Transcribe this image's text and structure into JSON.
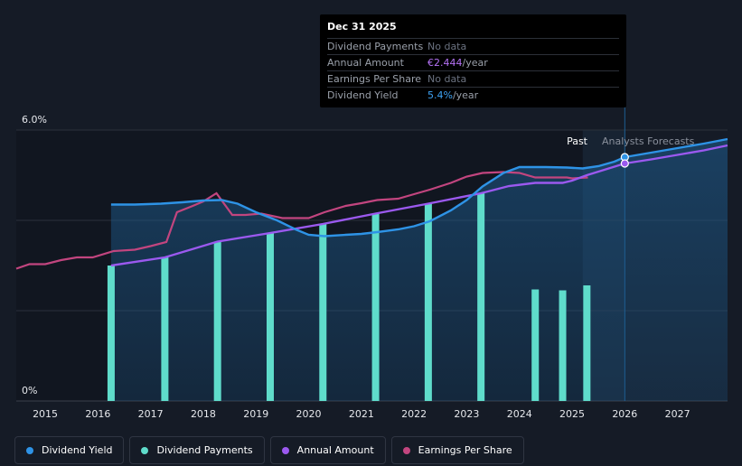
{
  "chart_data": {
    "type": "line",
    "y_axis": {
      "top_label": "6.0%",
      "bottom_label": "0%",
      "ylim": [
        0,
        6.0
      ],
      "gridlines": [
        0,
        2.0,
        4.0,
        6.0
      ]
    },
    "x_axis": {
      "ticks": [
        "2015",
        "2016",
        "2017",
        "2018",
        "2019",
        "2020",
        "2021",
        "2022",
        "2023",
        "2024",
        "2025",
        "2026",
        "2027"
      ],
      "xlim": [
        2014.45,
        2027.95
      ]
    },
    "regions": {
      "past_label": "Past",
      "forecast_label": "Analysts Forecasts",
      "past_end": 2025.2,
      "forecast_start": 2025.2,
      "highlight_at": 2026.0
    },
    "series": [
      {
        "name": "Dividend Yield",
        "color": "#2e93e6",
        "axis": "left",
        "points": [
          [
            2016.25,
            4.35
          ],
          [
            2016.7,
            4.35
          ],
          [
            2017.2,
            4.37
          ],
          [
            2017.6,
            4.4
          ],
          [
            2018.0,
            4.44
          ],
          [
            2018.35,
            4.45
          ],
          [
            2018.65,
            4.37
          ],
          [
            2019.0,
            4.18
          ],
          [
            2019.4,
            4.0
          ],
          [
            2019.75,
            3.8
          ],
          [
            2020.0,
            3.68
          ],
          [
            2020.3,
            3.65
          ],
          [
            2020.7,
            3.68
          ],
          [
            2021.0,
            3.7
          ],
          [
            2021.3,
            3.74
          ],
          [
            2021.7,
            3.8
          ],
          [
            2022.0,
            3.87
          ],
          [
            2022.3,
            3.98
          ],
          [
            2022.7,
            4.22
          ],
          [
            2023.0,
            4.45
          ],
          [
            2023.3,
            4.75
          ],
          [
            2023.7,
            5.05
          ],
          [
            2024.0,
            5.18
          ],
          [
            2024.5,
            5.18
          ],
          [
            2024.9,
            5.17
          ],
          [
            2025.2,
            5.15
          ],
          [
            2025.5,
            5.2
          ],
          [
            2025.8,
            5.3
          ],
          [
            2026.0,
            5.4
          ],
          [
            2026.5,
            5.5
          ],
          [
            2027.0,
            5.6
          ],
          [
            2027.5,
            5.7
          ],
          [
            2027.95,
            5.8
          ]
        ]
      },
      {
        "name": "Dividend Payments",
        "color": "#5fdccb",
        "type": "bar",
        "points": [
          [
            2016.25,
            3.0
          ],
          [
            2017.27,
            3.18
          ],
          [
            2018.27,
            3.53
          ],
          [
            2019.27,
            3.72
          ],
          [
            2020.27,
            3.92
          ],
          [
            2021.27,
            4.15
          ],
          [
            2022.27,
            4.37
          ],
          [
            2023.27,
            4.6
          ],
          [
            2024.3,
            2.47
          ],
          [
            2024.82,
            2.45
          ],
          [
            2025.28,
            2.56
          ]
        ]
      },
      {
        "name": "Annual Amount",
        "color": "#9b59ef",
        "axis": "left",
        "points": [
          [
            2016.25,
            3.0
          ],
          [
            2017.27,
            3.18
          ],
          [
            2018.27,
            3.53
          ],
          [
            2019.27,
            3.72
          ],
          [
            2020.27,
            3.92
          ],
          [
            2021.27,
            4.15
          ],
          [
            2022.27,
            4.37
          ],
          [
            2023.27,
            4.6
          ],
          [
            2023.8,
            4.76
          ],
          [
            2024.3,
            4.83
          ],
          [
            2024.82,
            4.83
          ],
          [
            2025.0,
            4.88
          ],
          [
            2025.28,
            5.0
          ],
          [
            2026.0,
            5.26
          ],
          [
            2026.5,
            5.35
          ],
          [
            2027.0,
            5.45
          ],
          [
            2027.5,
            5.55
          ],
          [
            2027.95,
            5.66
          ]
        ]
      },
      {
        "name": "Earnings Per Share",
        "color": "#c2457f",
        "axis": "right",
        "points": [
          [
            2014.45,
            2.93
          ],
          [
            2014.7,
            3.03
          ],
          [
            2015.0,
            3.03
          ],
          [
            2015.3,
            3.12
          ],
          [
            2015.6,
            3.18
          ],
          [
            2015.9,
            3.18
          ],
          [
            2016.3,
            3.32
          ],
          [
            2016.7,
            3.35
          ],
          [
            2017.0,
            3.43
          ],
          [
            2017.3,
            3.52
          ],
          [
            2017.5,
            4.18
          ],
          [
            2017.8,
            4.32
          ],
          [
            2018.0,
            4.42
          ],
          [
            2018.25,
            4.6
          ],
          [
            2018.55,
            4.12
          ],
          [
            2018.8,
            4.12
          ],
          [
            2019.1,
            4.15
          ],
          [
            2019.5,
            4.05
          ],
          [
            2019.8,
            4.05
          ],
          [
            2020.0,
            4.05
          ],
          [
            2020.3,
            4.18
          ],
          [
            2020.7,
            4.32
          ],
          [
            2021.0,
            4.38
          ],
          [
            2021.3,
            4.45
          ],
          [
            2021.7,
            4.48
          ],
          [
            2022.0,
            4.58
          ],
          [
            2022.3,
            4.68
          ],
          [
            2022.7,
            4.83
          ],
          [
            2023.0,
            4.97
          ],
          [
            2023.3,
            5.05
          ],
          [
            2023.7,
            5.07
          ],
          [
            2024.0,
            5.05
          ],
          [
            2024.3,
            4.95
          ],
          [
            2024.7,
            4.95
          ],
          [
            2024.9,
            4.95
          ],
          [
            2025.0,
            4.93
          ],
          [
            2025.3,
            4.95
          ]
        ]
      }
    ]
  },
  "tooltip": {
    "date": "Dec 31 2025",
    "rows": [
      {
        "key": "Dividend Payments",
        "value": "No data"
      },
      {
        "key": "Annual Amount",
        "value": "€2.444",
        "unit": "/year"
      },
      {
        "key": "Earnings Per Share",
        "value": "No data"
      },
      {
        "key": "Dividend Yield",
        "value": "5.4%",
        "unit": "/year"
      }
    ]
  },
  "legend": [
    {
      "label": "Dividend Yield",
      "color": "#2e93e6"
    },
    {
      "label": "Dividend Payments",
      "color": "#5fdccb"
    },
    {
      "label": "Annual Amount",
      "color": "#9b59ef"
    },
    {
      "label": "Earnings Per Share",
      "color": "#c2457f"
    }
  ]
}
